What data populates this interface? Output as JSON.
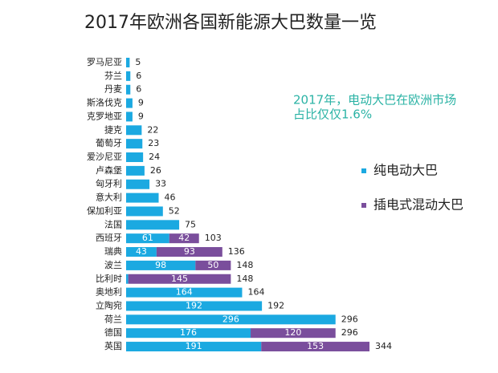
{
  "chart_data": {
    "type": "stacked-barh",
    "title": "2017年欧洲各国新能源大巴数量一览",
    "annotation": [
      "2017年，电动大巴在欧洲市场",
      "占比仅仅1.6%"
    ],
    "categories": [
      "罗马尼亚",
      "芬兰",
      "丹麦",
      "斯洛伐克",
      "克罗地亚",
      "捷克",
      "葡萄牙",
      "爱沙尼亚",
      "卢森堡",
      "匈牙利",
      "意大利",
      "保加利亚",
      "法国",
      "西班牙",
      "瑞典",
      "波兰",
      "比利时",
      "奥地利",
      "立陶宛",
      "荷兰",
      "德国",
      "英国"
    ],
    "series": [
      {
        "name": "纯电动大巴",
        "color": "#1ba9e1",
        "values": [
          5,
          6,
          6,
          9,
          9,
          22,
          23,
          24,
          26,
          33,
          46,
          52,
          75,
          61,
          43,
          98,
          3,
          164,
          192,
          296,
          176,
          191
        ]
      },
      {
        "name": "插电式混动大巴",
        "color": "#7a4e9c",
        "values": [
          0,
          0,
          0,
          0,
          0,
          0,
          0,
          0,
          0,
          0,
          0,
          0,
          0,
          42,
          93,
          50,
          145,
          0,
          0,
          0,
          120,
          153
        ]
      }
    ],
    "totals": [
      5,
      6,
      6,
      9,
      9,
      22,
      23,
      24,
      26,
      33,
      46,
      52,
      75,
      103,
      136,
      148,
      148,
      164,
      192,
      296,
      296,
      344
    ]
  }
}
